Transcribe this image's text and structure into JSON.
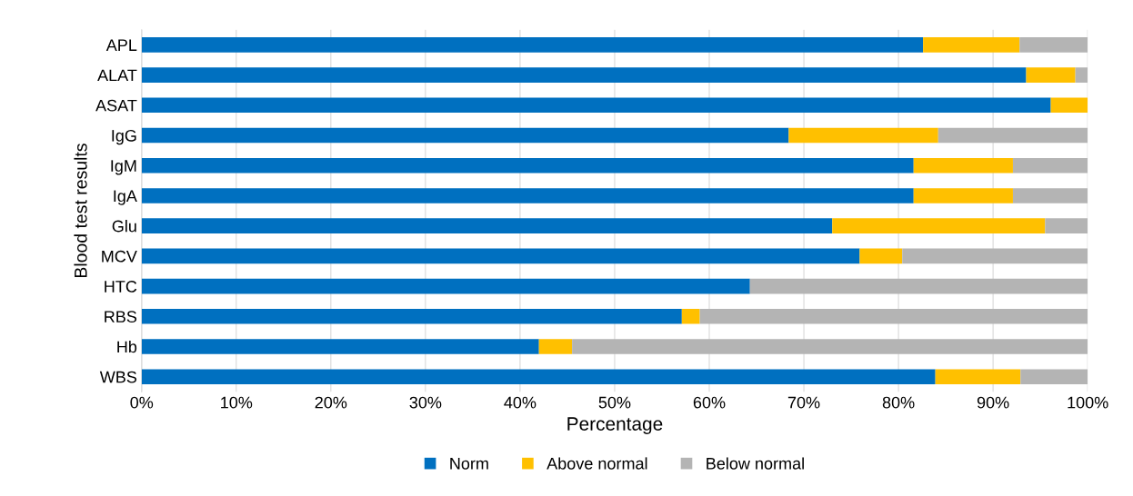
{
  "chart_data": {
    "type": "bar",
    "orientation": "horizontal",
    "stacked": true,
    "xlabel": "Percentage",
    "ylabel": "Blood test results",
    "categories": [
      "APL",
      "ALAT",
      "ASAT",
      "IgG",
      "IgM",
      "IgA",
      "Glu",
      "MCV",
      "HTC",
      "RBS",
      "Hb",
      "WBS"
    ],
    "series": [
      {
        "name": "Norm",
        "color": "#0070c0",
        "values": [
          82.6,
          93.5,
          96.1,
          68.4,
          81.6,
          81.6,
          73.0,
          75.9,
          64.3,
          57.1,
          42.0,
          83.9
        ]
      },
      {
        "name": "Above normal",
        "color": "#ffc000",
        "values": [
          10.2,
          5.2,
          3.9,
          15.8,
          10.5,
          10.5,
          22.5,
          4.5,
          0,
          1.9,
          3.5,
          9.0
        ]
      },
      {
        "name": "Below normal",
        "color": "#b4b4b4",
        "values": [
          7.2,
          1.3,
          0,
          15.8,
          7.9,
          7.9,
          4.5,
          19.6,
          35.7,
          41.0,
          54.5,
          7.1
        ]
      }
    ],
    "xlim": [
      0,
      100
    ],
    "xticks": [
      {
        "value": 0,
        "label": "0%"
      },
      {
        "value": 10,
        "label": "10%"
      },
      {
        "value": 20,
        "label": "20%"
      },
      {
        "value": 30,
        "label": "30%"
      },
      {
        "value": 40,
        "label": "40%"
      },
      {
        "value": 50,
        "label": "50%"
      },
      {
        "value": 60,
        "label": "60%"
      },
      {
        "value": 70,
        "label": "70%"
      },
      {
        "value": 80,
        "label": "80%"
      },
      {
        "value": 90,
        "label": "90%"
      },
      {
        "value": 100,
        "label": "100%"
      }
    ],
    "grid": "x",
    "legend": "bottom"
  }
}
